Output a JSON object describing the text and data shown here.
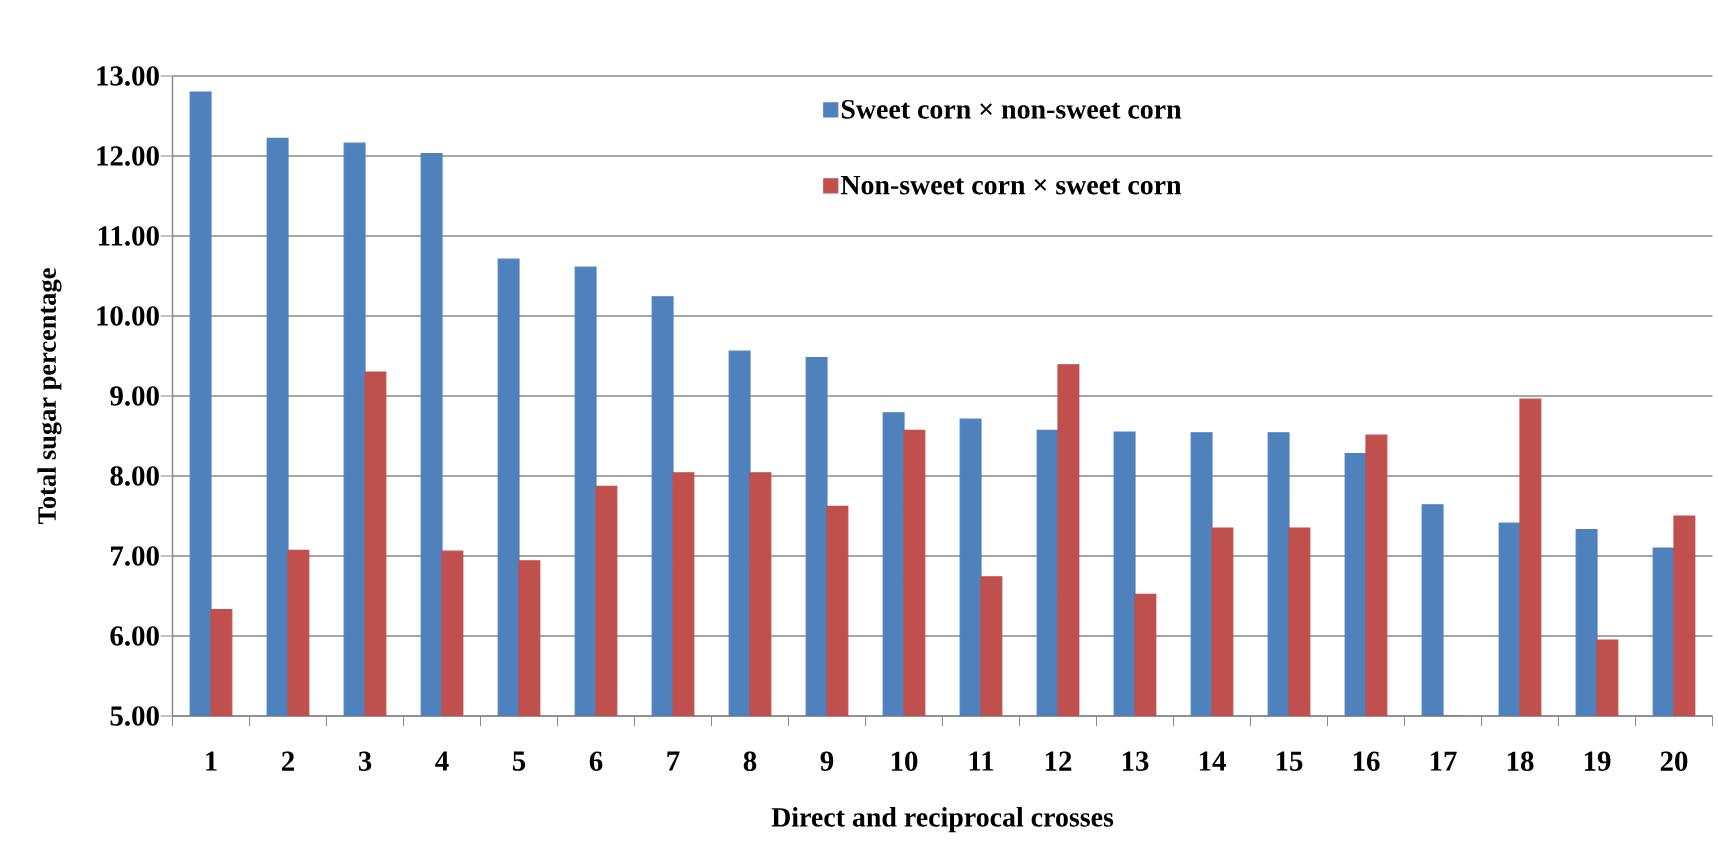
{
  "chart_data": {
    "type": "bar",
    "xlabel": "Direct and reciprocal crosses",
    "ylabel": "Total sugar percentage",
    "categories": [
      "1",
      "2",
      "3",
      "4",
      "5",
      "6",
      "7",
      "8",
      "9",
      "10",
      "11",
      "12",
      "13",
      "14",
      "15",
      "16",
      "17",
      "18",
      "19",
      "20"
    ],
    "series": [
      {
        "name": "Sweet corn × non-sweet corn",
        "color": "#4f81bd",
        "values": [
          12.8,
          12.22,
          12.16,
          12.03,
          10.71,
          10.61,
          10.24,
          9.56,
          9.48,
          8.79,
          8.71,
          8.57,
          8.55,
          8.54,
          8.54,
          8.28,
          7.64,
          7.41,
          7.33,
          7.1
        ]
      },
      {
        "name": "Non-sweet corn × sweet corn",
        "color": "#c0504d",
        "values": [
          6.33,
          7.07,
          9.3,
          7.06,
          6.94,
          7.87,
          8.04,
          8.04,
          7.62,
          8.57,
          6.74,
          9.39,
          6.52,
          7.35,
          7.35,
          8.51,
          5.0,
          8.96,
          5.95,
          7.5
        ]
      }
    ],
    "ylim": [
      5,
      13
    ],
    "yticks": [
      {
        "value": 5,
        "label": "5.00"
      },
      {
        "value": 6,
        "label": "6.00"
      },
      {
        "value": 7,
        "label": "7.00"
      },
      {
        "value": 8,
        "label": "8.00"
      },
      {
        "value": 9,
        "label": "9.00"
      },
      {
        "value": 10,
        "label": "10.00"
      },
      {
        "value": 11,
        "label": "11.00"
      },
      {
        "value": 12,
        "label": "12.00"
      },
      {
        "value": 13,
        "label": "13.00"
      }
    ],
    "grid": "y",
    "legend": "top"
  }
}
